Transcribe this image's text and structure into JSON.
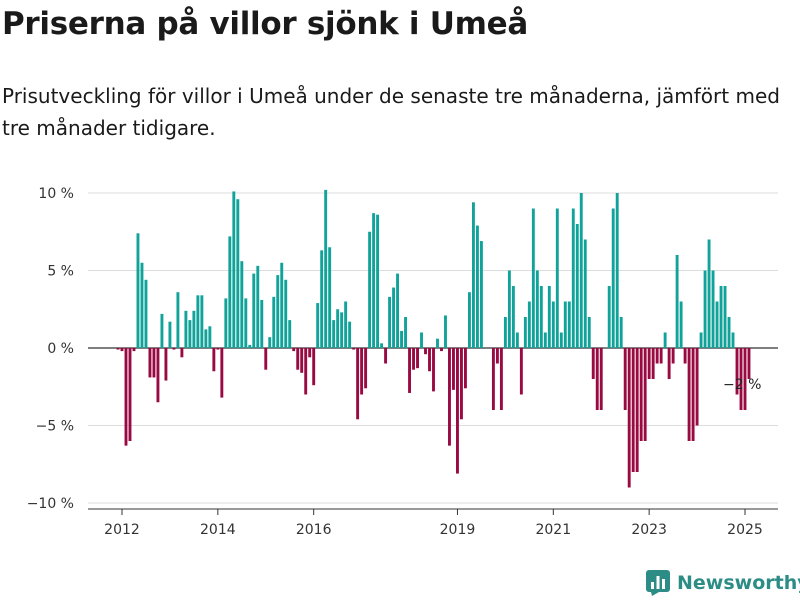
{
  "header": {
    "title": "Priserna på villor sjönk i Umeå",
    "subtitle": "Prisutveckling för villor i Umeå under de senaste tre månaderna, jämfört med tre månader tidigare."
  },
  "brand": {
    "name": "Newsworthy",
    "icon": "bar-chart-logo-icon",
    "color": "#2c8c86"
  },
  "chart_data": {
    "type": "bar",
    "x_start": "2011-01",
    "ylim": [
      -10,
      10
    ],
    "y_ticks": [
      10,
      5,
      0,
      -5,
      -10
    ],
    "y_tick_labels": [
      "10 %",
      "5 %",
      "0 %",
      "−5 %",
      "−10 %"
    ],
    "x_tick_labels": [
      {
        "label": "2012",
        "date": "2012-01"
      },
      {
        "label": "2014",
        "date": "2014-01"
      },
      {
        "label": "2016",
        "date": "2016-01"
      },
      {
        "label": "2019",
        "date": "2019-01"
      },
      {
        "label": "2021",
        "date": "2021-01"
      },
      {
        "label": "2023",
        "date": "2023-01"
      },
      {
        "label": "2025",
        "date": "2025-01"
      }
    ],
    "colors": {
      "positive": "#11a39a",
      "negative": "#9a0a42"
    },
    "grid": true,
    "annotation": {
      "text": "−2 %",
      "date": "2024-11",
      "value": -2
    },
    "values": [
      null,
      null,
      null,
      null,
      null,
      null,
      null,
      null,
      null,
      null,
      null,
      -0.1,
      -0.2,
      -6.3,
      -6.0,
      -0.2,
      7.4,
      5.5,
      4.4,
      -1.9,
      -1.9,
      -3.5,
      2.2,
      -2.1,
      1.7,
      -0.1,
      3.6,
      -0.6,
      2.4,
      1.8,
      2.4,
      3.4,
      3.4,
      1.2,
      1.4,
      -1.5,
      -0.1,
      -3.2,
      3.2,
      7.2,
      10.1,
      9.6,
      5.6,
      3.2,
      0.2,
      4.8,
      5.3,
      3.1,
      -1.4,
      0.7,
      3.3,
      4.7,
      5.5,
      4.4,
      1.8,
      -0.2,
      -1.4,
      -1.6,
      -3.0,
      -0.6,
      -2.4,
      2.9,
      6.3,
      10.2,
      6.5,
      1.8,
      2.5,
      2.3,
      3.0,
      1.7,
      -0.1,
      -4.6,
      -3.0,
      -2.6,
      7.5,
      8.7,
      8.6,
      0.3,
      -1.0,
      3.3,
      3.9,
      4.8,
      1.1,
      2.0,
      -2.9,
      -1.4,
      -1.3,
      1.0,
      -0.4,
      -1.5,
      -2.8,
      0.6,
      -0.2,
      2.1,
      -6.3,
      -2.7,
      -8.1,
      -4.6,
      -2.6,
      3.6,
      9.4,
      7.9,
      6.9,
      null,
      null,
      -4.0,
      -1.0,
      -4.0,
      2.0,
      5.0,
      4.0,
      1.0,
      -3.0,
      2.0,
      3.0,
      9.0,
      5.0,
      4.0,
      1.0,
      4.0,
      3.0,
      9.0,
      1.0,
      3.0,
      3.0,
      9.0,
      8.0,
      10.0,
      7.0,
      2.0,
      -2.0,
      -4.0,
      -4.0,
      null,
      4.0,
      9.0,
      10.0,
      2.0,
      -4.0,
      -9.0,
      -8.0,
      -8.0,
      -6.0,
      -6.0,
      -2.0,
      -2.0,
      -1.0,
      -1.0,
      1.0,
      -2.0,
      -1.0,
      6.0,
      3.0,
      -1.0,
      -6.0,
      -6.0,
      -5.0,
      1.0,
      5.0,
      7.0,
      5.0,
      3.0,
      4.0,
      4.0,
      2.0,
      1.0,
      -3.0,
      -4.0,
      -4.0,
      -2.0
    ]
  }
}
